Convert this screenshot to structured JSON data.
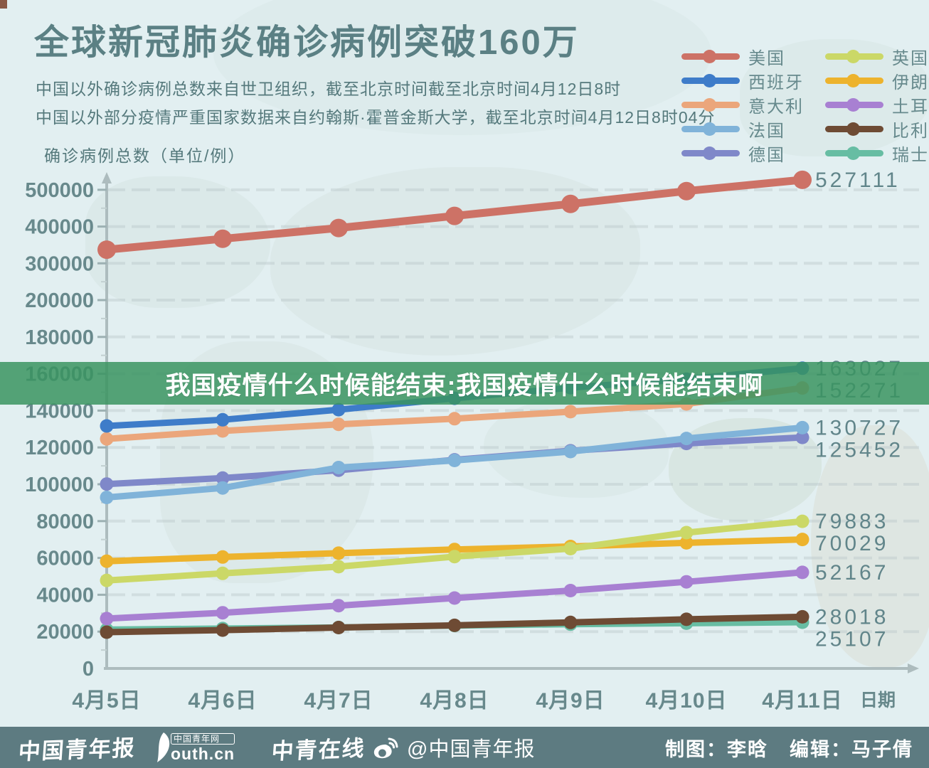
{
  "header": {
    "title": "全球新冠肺炎确诊病例突破160万",
    "subtitle1": "中国以外确诊病例总数来自世卫组织，截至北京时间截至北京时间4月12日8时",
    "subtitle2": "中国以外部分疫情严重国家数据来自约翰斯·霍普金斯大学，截至北京时间4月12日8时04分",
    "axis_title": "确诊病例总数（单位/例）"
  },
  "banner": {
    "text": "我国疫情什么时候能结束:我国疫情什么时候能结束啊"
  },
  "chart_data": {
    "type": "line",
    "title": "全球新冠肺炎确诊病例突破160万",
    "x_categories": [
      "4月5日",
      "4月6日",
      "4月7日",
      "4月8日",
      "4月9日",
      "4月10日",
      "4月11日"
    ],
    "x_axis_label": "日期",
    "y_ticks": [
      "0",
      "20000",
      "40000",
      "60000",
      "80000",
      "100000",
      "120000",
      "140000",
      "160000",
      "180000",
      "200000",
      "300000",
      "400000",
      "500000"
    ],
    "y_axis_note": "broken scale: 20000 steps up to 200000, then 100000 steps to 500000",
    "grid": "dashed horizontal rows at every tick",
    "legend_position": "top-right, two columns",
    "series": [
      {
        "name": "美国",
        "color": "#cd7266",
        "values": [
          337072,
          366667,
          396223,
          429052,
          461437,
          496535,
          527111
        ],
        "end_label": "527111"
      },
      {
        "name": "西班牙",
        "color": "#3e7cc9",
        "values": [
          131646,
          135032,
          140510,
          146690,
          152446,
          157022,
          163027
        ],
        "end_label": "163027"
      },
      {
        "name": "意大利",
        "color": "#eba67b",
        "values": [
          124632,
          128948,
          132547,
          135586,
          139422,
          143626,
          152271
        ],
        "end_label": "152271"
      },
      {
        "name": "法国",
        "color": "#80b3d9",
        "values": [
          92839,
          98010,
          109069,
          112950,
          117749,
          124869,
          130727
        ],
        "end_label": "130727"
      },
      {
        "name": "德国",
        "color": "#7f88c9",
        "values": [
          100123,
          103374,
          107663,
          113296,
          118181,
          122171,
          125452
        ],
        "end_label": "125452"
      },
      {
        "name": "英国",
        "color": "#cbd867",
        "values": [
          47806,
          51608,
          55242,
          60733,
          65077,
          73758,
          79883
        ],
        "end_label": "79883"
      },
      {
        "name": "伊朗",
        "color": "#edb32d",
        "values": [
          58226,
          60500,
          62589,
          64586,
          66220,
          68192,
          70029
        ],
        "end_label": "70029"
      },
      {
        "name": "土耳其",
        "color": "#a880d2",
        "values": [
          27069,
          30217,
          34109,
          38226,
          42282,
          47029,
          52167
        ],
        "end_label": "52167"
      },
      {
        "name": "比利时",
        "color": "#6e4b34",
        "values": [
          19691,
          20814,
          22194,
          23403,
          24983,
          26667,
          28018
        ],
        "end_label": "28018"
      },
      {
        "name": "瑞士",
        "color": "#67bda3",
        "values": [
          21100,
          21657,
          22253,
          23280,
          24051,
          24551,
          25107
        ],
        "end_label": "25107"
      }
    ]
  },
  "footer": {
    "logo1": "中国青年报",
    "logo2_badge": "中国青年网",
    "logo2_text": "outh.cn",
    "logo3": "中青在线",
    "weibo_handle": "@中国青年报",
    "credit_design": "制图：李晗",
    "credit_edit": "编辑：马子倩"
  },
  "colors": {
    "background": "#e2eff1",
    "text_slate": "#5b8084",
    "tick_text": "#68898c",
    "banner_green": "#3a9460",
    "footer_slate": "#5d7b81",
    "axis_gray": "#adbcbe"
  }
}
